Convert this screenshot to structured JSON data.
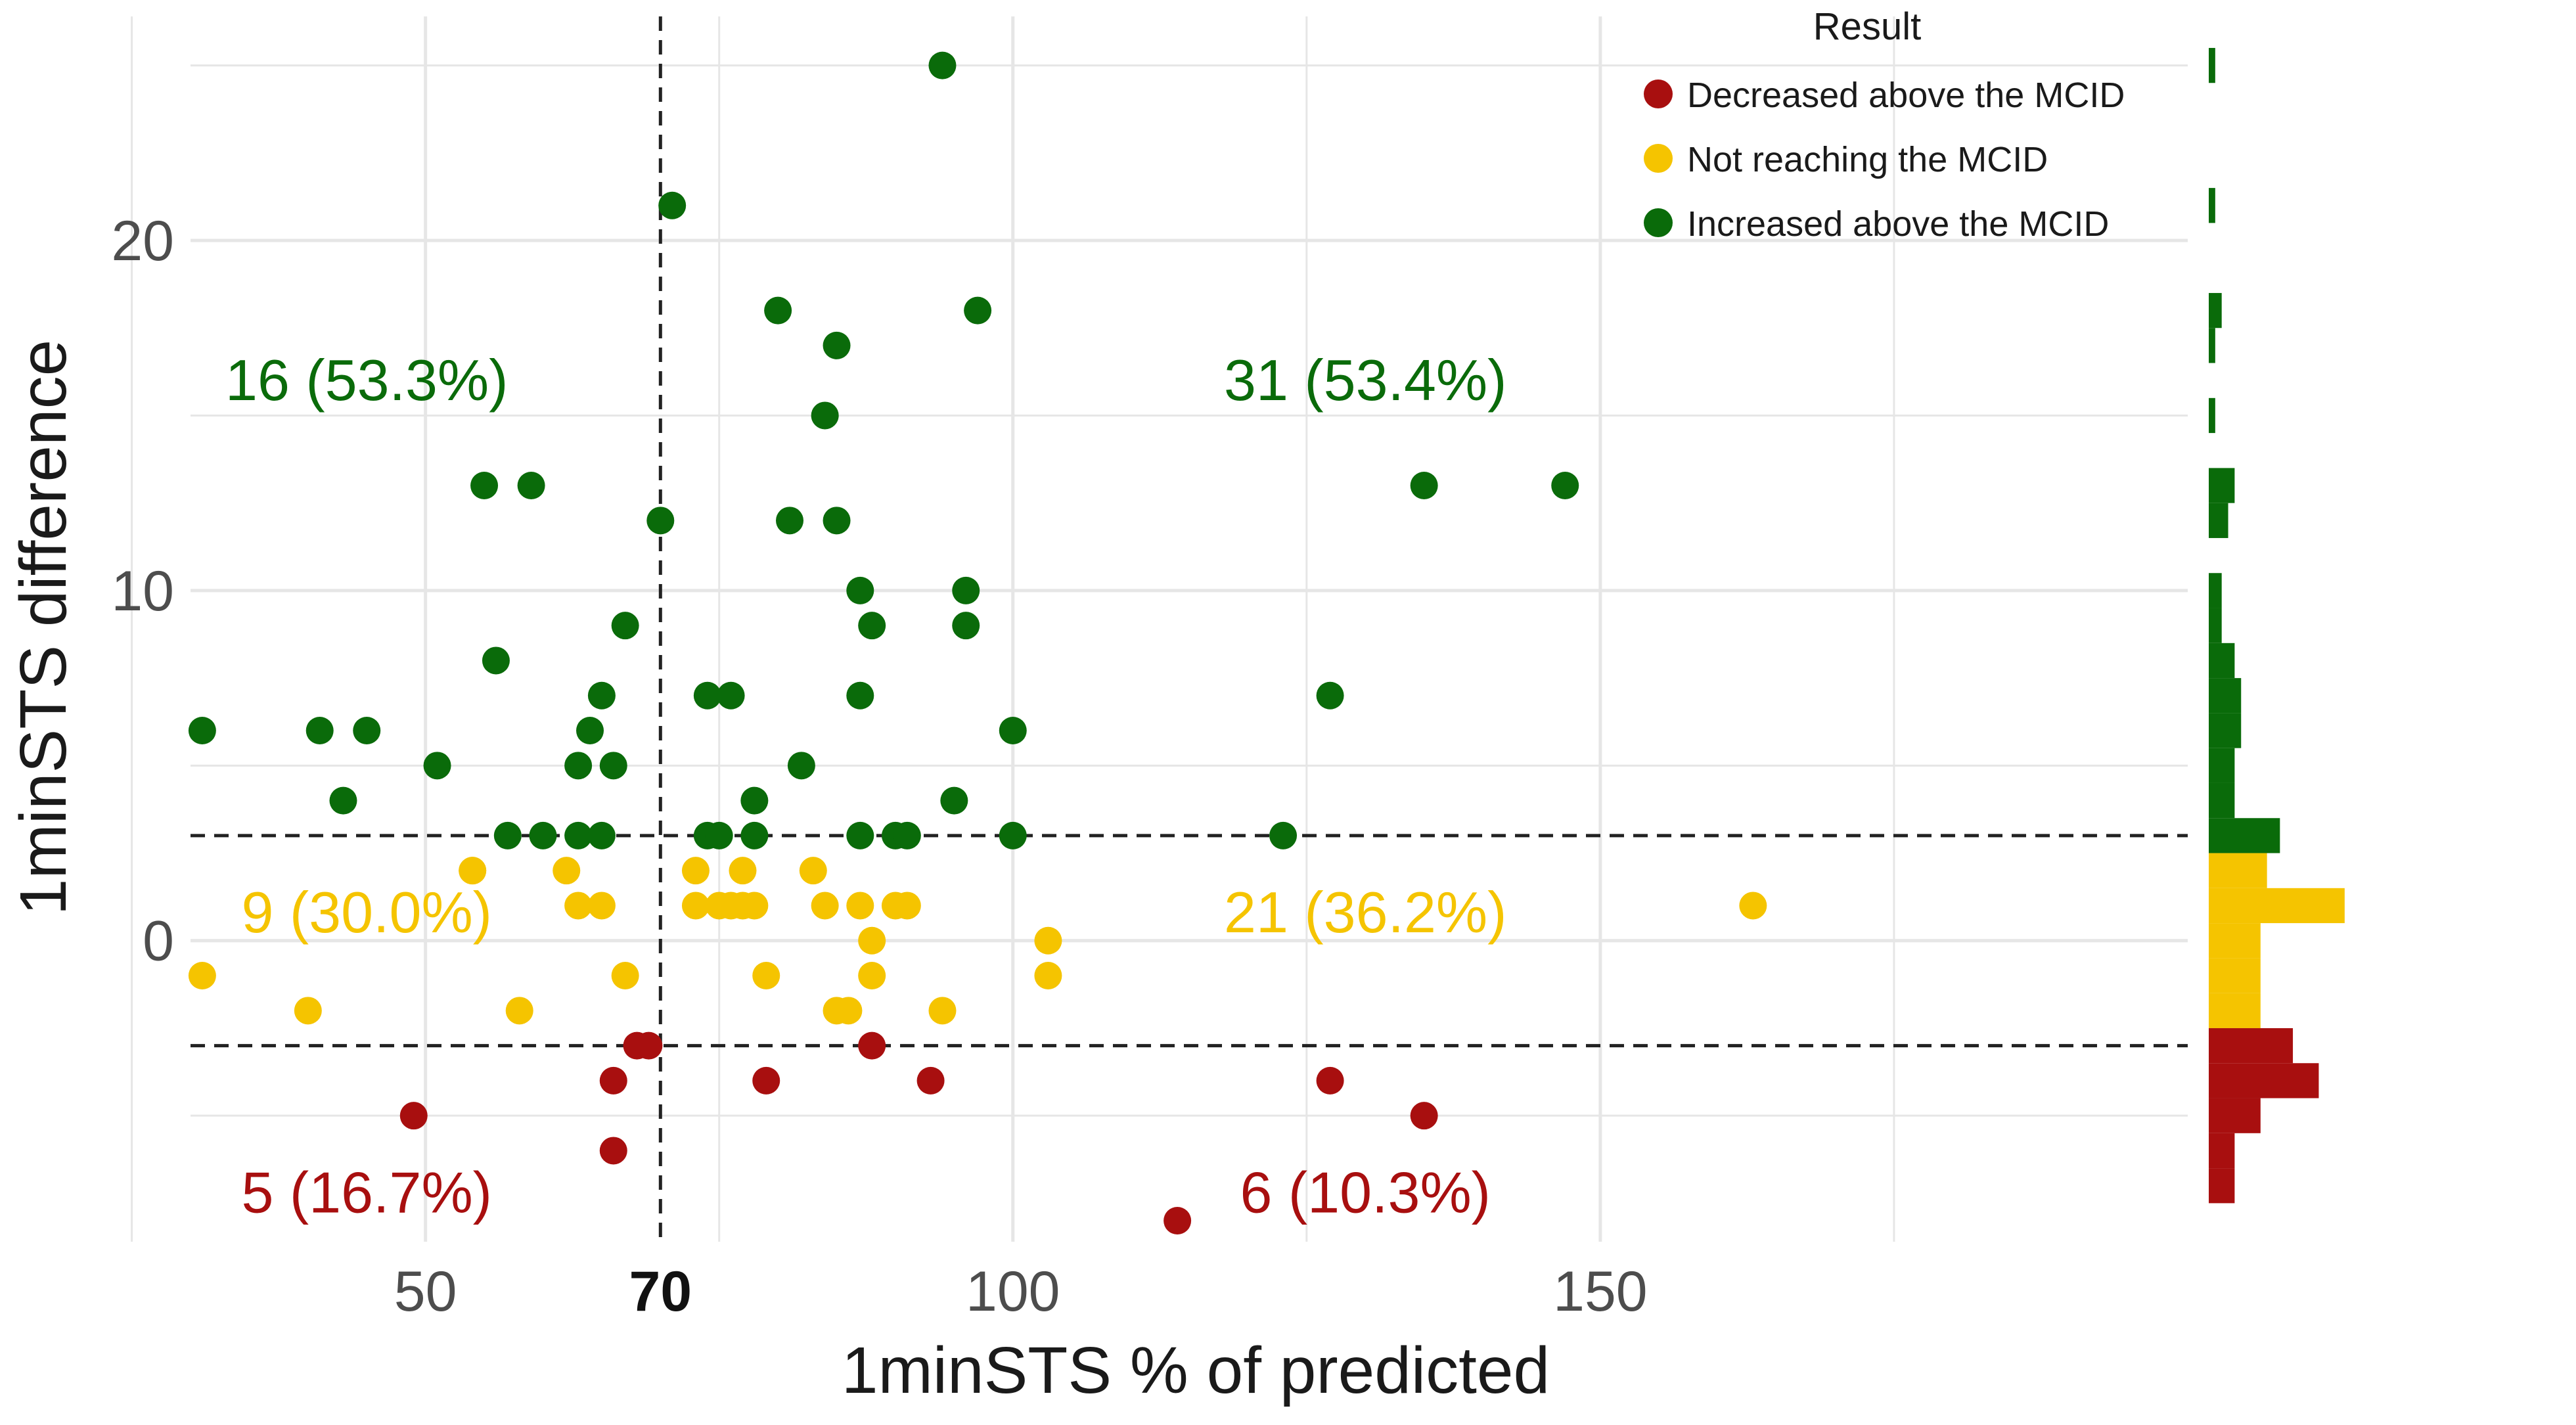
{
  "chart_data": {
    "type": "scatter",
    "xlabel": "1minSTS % of predicted",
    "ylabel": "1minSTS difference",
    "xlim": [
      30,
      200
    ],
    "ylim": [
      -8.6,
      26.4
    ],
    "x_ticks": [
      50,
      100,
      150
    ],
    "x_tick_labels": [
      "50",
      "100",
      "150"
    ],
    "y_ticks": [
      0,
      10,
      20
    ],
    "y_tick_labels": [
      "0",
      "10",
      "20"
    ],
    "ref_lines": {
      "vertical_x": 70,
      "vertical_label": "70",
      "horizontal_y": [
        3,
        -3
      ]
    },
    "colors": {
      "decreased": "#a80f0f",
      "not_reaching": "#f5c400",
      "increased": "#0a6b0a",
      "grid": "#e6e6e6",
      "tick_text": "#4d4d4d",
      "ref_line": "#222222"
    },
    "legend": {
      "title": "Result",
      "entries": [
        {
          "key": "decreased",
          "label": "Decreased above the MCID"
        },
        {
          "key": "not_reaching",
          "label": "Not reaching the MCID"
        },
        {
          "key": "increased",
          "label": "Increased above the MCID"
        }
      ]
    },
    "annotations": [
      {
        "text": "16 (53.3%)",
        "key": "increased",
        "x": 45,
        "y": 16
      },
      {
        "text": "31 (53.4%)",
        "key": "increased",
        "x": 130,
        "y": 16
      },
      {
        "text": "9 (30.0%)",
        "key": "not_reaching",
        "x": 45,
        "y": 0.8
      },
      {
        "text": "21 (36.2%)",
        "key": "not_reaching",
        "x": 130,
        "y": 0.8
      },
      {
        "text": "5 (16.7%)",
        "key": "decreased",
        "x": 45,
        "y": -7.2
      },
      {
        "text": "6 (10.3%)",
        "key": "decreased",
        "x": 130,
        "y": -7.2
      }
    ],
    "series": [
      {
        "name": "Decreased above the MCID",
        "key": "decreased",
        "points": [
          [
            49,
            -5
          ],
          [
            66,
            -4
          ],
          [
            66,
            -6
          ],
          [
            68,
            -3
          ],
          [
            69,
            -3
          ],
          [
            79,
            -4
          ],
          [
            88,
            -3
          ],
          [
            93,
            -4
          ],
          [
            114,
            -8
          ],
          [
            127,
            -4
          ],
          [
            135,
            -5
          ]
        ]
      },
      {
        "name": "Not reaching the MCID",
        "key": "not_reaching",
        "points": [
          [
            31,
            -1
          ],
          [
            40,
            -2
          ],
          [
            54,
            2
          ],
          [
            54,
            2
          ],
          [
            58,
            -2
          ],
          [
            62,
            2
          ],
          [
            63,
            1
          ],
          [
            65,
            1
          ],
          [
            67,
            -1
          ],
          [
            73,
            2
          ],
          [
            73,
            1
          ],
          [
            75,
            1
          ],
          [
            76,
            1
          ],
          [
            77,
            2
          ],
          [
            77,
            1
          ],
          [
            78,
            1
          ],
          [
            79,
            -1
          ],
          [
            83,
            2
          ],
          [
            84,
            1
          ],
          [
            85,
            -2
          ],
          [
            86,
            -2
          ],
          [
            87,
            1
          ],
          [
            88,
            0
          ],
          [
            88,
            -1
          ],
          [
            90,
            1
          ],
          [
            91,
            1
          ],
          [
            94,
            -2
          ],
          [
            103,
            0
          ],
          [
            103,
            -1
          ],
          [
            163,
            1
          ]
        ]
      },
      {
        "name": "Increased above the MCID",
        "key": "increased",
        "points": [
          [
            31,
            6
          ],
          [
            41,
            6
          ],
          [
            43,
            4
          ],
          [
            45,
            6
          ],
          [
            51,
            5
          ],
          [
            55,
            13
          ],
          [
            56,
            8
          ],
          [
            57,
            3
          ],
          [
            59,
            13
          ],
          [
            60,
            3
          ],
          [
            63,
            3
          ],
          [
            63,
            5
          ],
          [
            64,
            6
          ],
          [
            65,
            7
          ],
          [
            65,
            3
          ],
          [
            66,
            5
          ],
          [
            67,
            9
          ],
          [
            70,
            12
          ],
          [
            71,
            21
          ],
          [
            74,
            7
          ],
          [
            74,
            3
          ],
          [
            75,
            3
          ],
          [
            76,
            7
          ],
          [
            78,
            3
          ],
          [
            78,
            4
          ],
          [
            80,
            18
          ],
          [
            81,
            12
          ],
          [
            82,
            5
          ],
          [
            84,
            15
          ],
          [
            85,
            12
          ],
          [
            85,
            17
          ],
          [
            87,
            10
          ],
          [
            88,
            9
          ],
          [
            87,
            7
          ],
          [
            87,
            3
          ],
          [
            90,
            3
          ],
          [
            91,
            3
          ],
          [
            94,
            25
          ],
          [
            95,
            4
          ],
          [
            96,
            10
          ],
          [
            96,
            9
          ],
          [
            97,
            18
          ],
          [
            100,
            6
          ],
          [
            100,
            3
          ],
          [
            123,
            3
          ],
          [
            127,
            7
          ],
          [
            135,
            13
          ],
          [
            147,
            13
          ]
        ]
      }
    ],
    "marginal_histogram": {
      "bin_width": 1,
      "bins": [
        {
          "y": 25,
          "count": 1,
          "key": "increased"
        },
        {
          "y": 21,
          "count": 1,
          "key": "increased"
        },
        {
          "y": 18,
          "count": 2,
          "key": "increased"
        },
        {
          "y": 17,
          "count": 1,
          "key": "increased"
        },
        {
          "y": 15,
          "count": 1,
          "key": "increased"
        },
        {
          "y": 13,
          "count": 4,
          "key": "increased"
        },
        {
          "y": 12,
          "count": 3,
          "key": "increased"
        },
        {
          "y": 10,
          "count": 2,
          "key": "increased"
        },
        {
          "y": 9,
          "count": 2,
          "key": "increased"
        },
        {
          "y": 8,
          "count": 4,
          "key": "increased"
        },
        {
          "y": 7,
          "count": 5,
          "key": "increased"
        },
        {
          "y": 6,
          "count": 5,
          "key": "increased"
        },
        {
          "y": 5,
          "count": 4,
          "key": "increased"
        },
        {
          "y": 4,
          "count": 4,
          "key": "increased"
        },
        {
          "y": 3,
          "count": 11,
          "key": "increased"
        },
        {
          "y": 2,
          "count": 9,
          "key": "not_reaching"
        },
        {
          "y": 1,
          "count": 21,
          "key": "not_reaching"
        },
        {
          "y": 0,
          "count": 8,
          "key": "not_reaching"
        },
        {
          "y": -1,
          "count": 8,
          "key": "not_reaching"
        },
        {
          "y": -2,
          "count": 8,
          "key": "not_reaching"
        },
        {
          "y": -3,
          "count": 13,
          "key": "decreased"
        },
        {
          "y": -4,
          "count": 17,
          "key": "decreased"
        },
        {
          "y": -5,
          "count": 8,
          "key": "decreased"
        },
        {
          "y": -6,
          "count": 4,
          "key": "decreased"
        },
        {
          "y": -7,
          "count": 4,
          "key": "decreased"
        }
      ]
    }
  }
}
